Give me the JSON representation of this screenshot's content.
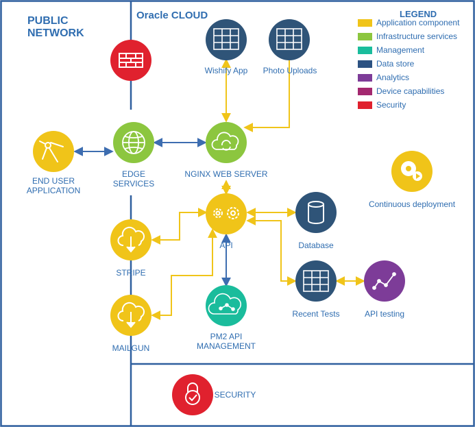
{
  "zones": {
    "public_network": [
      "PUBLIC",
      "NETWORK"
    ],
    "oracle_cloud": "Oracle CLOUD"
  },
  "legend": {
    "title": "LEGEND",
    "items": [
      {
        "label": "Application component",
        "color": "#f0c419"
      },
      {
        "label": "Infrastructure services",
        "color": "#8cc63f"
      },
      {
        "label": "Management",
        "color": "#1abc9c"
      },
      {
        "label": "Data store",
        "color": "#2c5282"
      },
      {
        "label": "Analytics",
        "color": "#7d3c98"
      },
      {
        "label": "Device capabilities",
        "color": "#a3286f"
      },
      {
        "label": "Security",
        "color": "#e0212e"
      }
    ]
  },
  "nodes": {
    "firewall": {
      "label": "",
      "icon": "firewall-icon",
      "color": "#e0212e"
    },
    "wishify": {
      "label": "Wishify App",
      "icon": "grid-icon",
      "color": "#2f5478"
    },
    "photo": {
      "label": "Photo Uploads",
      "icon": "grid-icon",
      "color": "#2f5478"
    },
    "end_user": {
      "label": [
        "END USER",
        "APPLICATION"
      ],
      "icon": "compass-icon",
      "color": "#f0c419"
    },
    "edge": {
      "label": [
        "EDGE",
        "SERVICES"
      ],
      "icon": "globe-icon",
      "color": "#8cc63f"
    },
    "nginx": {
      "label": "NGINX WEB SERVER",
      "icon": "cloud-sync-icon",
      "color": "#8cc63f"
    },
    "api": {
      "label": "API",
      "icon": "gears-icon",
      "color": "#f0c419"
    },
    "database": {
      "label": "Database",
      "icon": "database-icon",
      "color": "#2f5478"
    },
    "stripe": {
      "label": "STRIPE",
      "icon": "cloud-download-icon",
      "color": "#f0c419"
    },
    "mailgun": {
      "label": "MAILGUN",
      "icon": "cloud-download-icon",
      "color": "#f0c419"
    },
    "pm2": {
      "label": [
        "PM2 API",
        "MANAGEMENT"
      ],
      "icon": "network-cloud-icon",
      "color": "#1abc9c"
    },
    "recent": {
      "label": "Recent Tests",
      "icon": "grid-icon",
      "color": "#2f5478"
    },
    "api_testing": {
      "label": "API testing",
      "icon": "analytics-icon",
      "color": "#7d3c98"
    },
    "cd": {
      "label": "Continuous deployment",
      "icon": "gear-play-icon",
      "color": "#f0c419"
    },
    "security": {
      "label": "SECURITY",
      "icon": "lock-icon",
      "color": "#e0212e"
    }
  },
  "colors": {
    "frame": "#2f5f9e",
    "yellow_connector": "#f0c419",
    "blue_connector": "#3d6db0",
    "text": "#2f6db0"
  }
}
